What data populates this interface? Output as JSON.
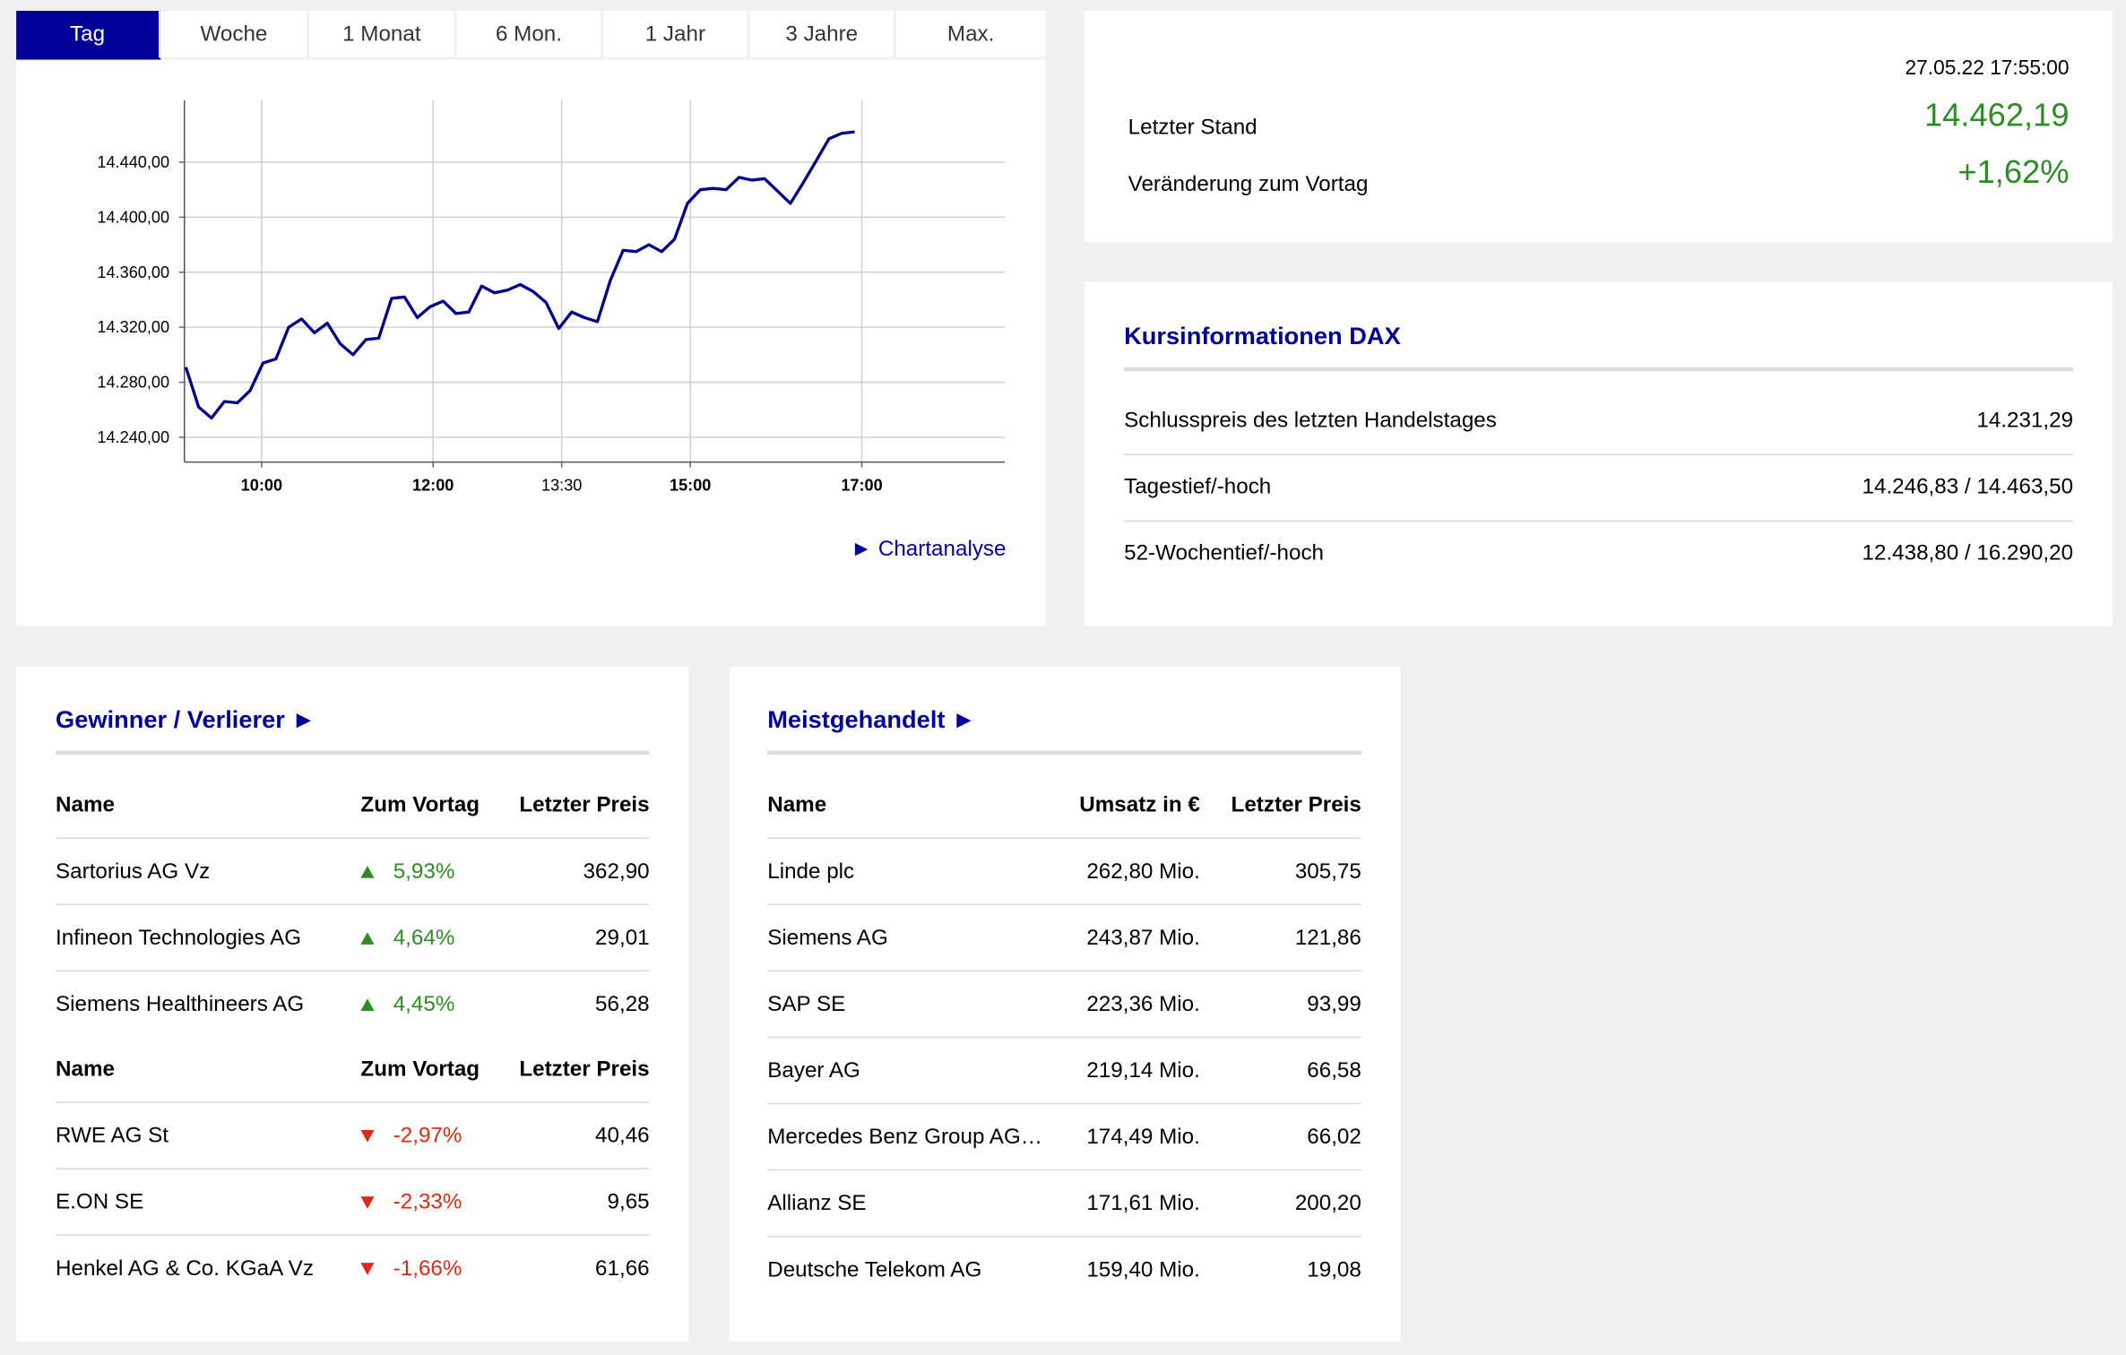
{
  "tabs": [
    {
      "label": "Tag",
      "active": true
    },
    {
      "label": "Woche",
      "active": false
    },
    {
      "label": "1 Monat",
      "active": false
    },
    {
      "label": "6 Mon.",
      "active": false
    },
    {
      "label": "1 Jahr",
      "active": false
    },
    {
      "label": "3 Jahre",
      "active": false
    },
    {
      "label": "Max.",
      "active": false
    }
  ],
  "chart_link": "► Chartanalyse",
  "chart_data": {
    "type": "line",
    "x_ticks": [
      {
        "label": "10:00",
        "time": "10:00",
        "bold": true
      },
      {
        "label": "12:00",
        "time": "12:00",
        "bold": true
      },
      {
        "label": "13:30",
        "time": "13:30",
        "bold": false
      },
      {
        "label": "15:00",
        "time": "15:00",
        "bold": true
      },
      {
        "label": "17:00",
        "time": "17:00",
        "bold": true
      }
    ],
    "y_ticks": [
      "14.240,00",
      "14.280,00",
      "14.320,00",
      "14.360,00",
      "14.400,00",
      "14.440,00"
    ],
    "y_tick_values": [
      14240,
      14280,
      14320,
      14360,
      14400,
      14440
    ],
    "xlim": [
      "09:06",
      "18:40"
    ],
    "ylim": [
      14222,
      14485
    ],
    "grid": true,
    "line_color": "#000088",
    "series": [
      {
        "points": [
          [
            "09:07",
            14291
          ],
          [
            "09:16",
            14262
          ],
          [
            "09:25",
            14254
          ],
          [
            "09:34",
            14266
          ],
          [
            "09:43",
            14265
          ],
          [
            "09:52",
            14274
          ],
          [
            "10:01",
            14294
          ],
          [
            "10:10",
            14297
          ],
          [
            "10:19",
            14320
          ],
          [
            "10:28",
            14326
          ],
          [
            "10:37",
            14316
          ],
          [
            "10:46",
            14323
          ],
          [
            "10:55",
            14308
          ],
          [
            "11:04",
            14300
          ],
          [
            "11:13",
            14311
          ],
          [
            "11:22",
            14312
          ],
          [
            "11:31",
            14341
          ],
          [
            "11:40",
            14342
          ],
          [
            "11:49",
            14327
          ],
          [
            "11:58",
            14335
          ],
          [
            "12:07",
            14339
          ],
          [
            "12:16",
            14330
          ],
          [
            "12:25",
            14331
          ],
          [
            "12:34",
            14350
          ],
          [
            "12:43",
            14345
          ],
          [
            "12:52",
            14347
          ],
          [
            "13:01",
            14351
          ],
          [
            "13:10",
            14346
          ],
          [
            "13:19",
            14338
          ],
          [
            "13:28",
            14319
          ],
          [
            "13:37",
            14331
          ],
          [
            "13:46",
            14327
          ],
          [
            "13:55",
            14324
          ],
          [
            "14:04",
            14354
          ],
          [
            "14:13",
            14376
          ],
          [
            "14:22",
            14375
          ],
          [
            "14:31",
            14380
          ],
          [
            "14:40",
            14375
          ],
          [
            "14:49",
            14384
          ],
          [
            "14:58",
            14410
          ],
          [
            "15:07",
            14420
          ],
          [
            "15:16",
            14421
          ],
          [
            "15:25",
            14420
          ],
          [
            "15:34",
            14429
          ],
          [
            "15:43",
            14427
          ],
          [
            "15:52",
            14428
          ],
          [
            "16:01",
            14419
          ],
          [
            "16:10",
            14410
          ],
          [
            "16:19",
            14425
          ],
          [
            "16:28",
            14441
          ],
          [
            "16:37",
            14457
          ],
          [
            "16:46",
            14461
          ],
          [
            "16:55",
            14462
          ]
        ]
      }
    ]
  },
  "quote": {
    "timestamp": "27.05.22 17:55:00",
    "last_label": "Letzter Stand",
    "last_value": "14.462,19",
    "change_label": "Veränderung zum Vortag",
    "change_value": "+1,62%",
    "positive_color": "#2e8b25"
  },
  "info": {
    "title": "Kursinformationen DAX",
    "rows": [
      {
        "label": "Schlusspreis des letzten Handelstages",
        "value": "14.231,29"
      },
      {
        "label": "Tagestief/-hoch",
        "value": "14.246,83 / 14.463,50"
      },
      {
        "label": "52-Wochentief/-hoch",
        "value": "12.438,80 / 16.290,20"
      }
    ]
  },
  "movers": {
    "title": "Gewinner / Verlierer ►",
    "headers": {
      "name": "Name",
      "change": "Zum Vortag",
      "price": "Letzter Preis"
    },
    "gainers": [
      {
        "name": "Sartorius AG Vz",
        "change": "5,93%",
        "price": "362,90",
        "direction": "up"
      },
      {
        "name": "Infineon Technologies AG",
        "change": "4,64%",
        "price": "29,01",
        "direction": "up"
      },
      {
        "name": "Siemens Healthineers AG",
        "change": "4,45%",
        "price": "56,28",
        "direction": "up"
      }
    ],
    "losers": [
      {
        "name": "RWE AG St",
        "change": "-2,97%",
        "price": "40,46",
        "direction": "down"
      },
      {
        "name": "E.ON SE",
        "change": "-2,33%",
        "price": "9,65",
        "direction": "down"
      },
      {
        "name": "Henkel AG & Co. KGaA Vz",
        "change": "-1,66%",
        "price": "61,66",
        "direction": "down"
      }
    ],
    "up_color": "#2e8b25",
    "down_color": "#d62c1a"
  },
  "volume": {
    "title": "Meistgehandelt ►",
    "headers": {
      "name": "Name",
      "turnover": "Umsatz in €",
      "price": "Letzter Preis"
    },
    "rows": [
      {
        "name": "Linde plc",
        "turnover": "262,80 Mio.",
        "price": "305,75"
      },
      {
        "name": "Siemens AG",
        "turnover": "243,87 Mio.",
        "price": "121,86"
      },
      {
        "name": "SAP SE",
        "turnover": "223,36 Mio.",
        "price": "93,99"
      },
      {
        "name": "Bayer AG",
        "turnover": "219,14 Mio.",
        "price": "66,58"
      },
      {
        "name": "Mercedes Benz Group AG…",
        "turnover": "174,49 Mio.",
        "price": "66,02"
      },
      {
        "name": "Allianz SE",
        "turnover": "171,61 Mio.",
        "price": "200,20"
      },
      {
        "name": "Deutsche Telekom AG",
        "turnover": "159,40 Mio.",
        "price": "19,08"
      }
    ]
  },
  "accent_color": "#000099"
}
